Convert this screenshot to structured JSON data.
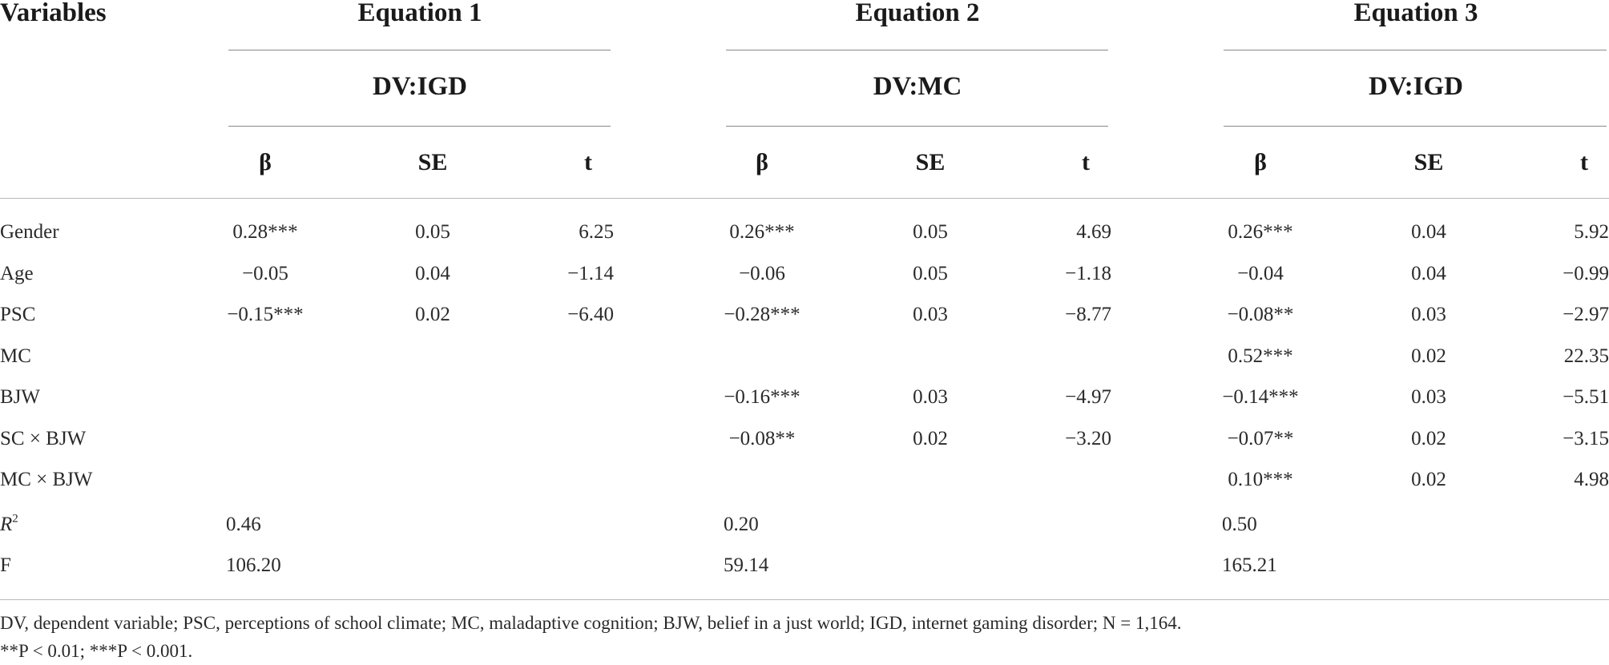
{
  "table": {
    "var_header": "Variables",
    "equations": [
      {
        "title": "Equation 1",
        "dv": "DV:IGD"
      },
      {
        "title": "Equation 2",
        "dv": "DV:MC"
      },
      {
        "title": "Equation 3",
        "dv": "DV:IGD"
      }
    ],
    "col_headers": [
      "β",
      "SE",
      "t"
    ],
    "rows": [
      {
        "label": "Gender",
        "cells": [
          "0.28***",
          "0.05",
          "6.25",
          "0.26***",
          "0.05",
          "4.69",
          "0.26***",
          "0.04",
          "5.92"
        ]
      },
      {
        "label": "Age",
        "cells": [
          "−0.05",
          "0.04",
          "−1.14",
          "−0.06",
          "0.05",
          "−1.18",
          "−0.04",
          "0.04",
          "−0.99"
        ]
      },
      {
        "label": "PSC",
        "cells": [
          "−0.15***",
          "0.02",
          "−6.40",
          "−0.28***",
          "0.03",
          "−8.77",
          "−0.08**",
          "0.03",
          "−2.97"
        ]
      },
      {
        "label": "MC",
        "cells": [
          "",
          "",
          "",
          "",
          "",
          "",
          "0.52***",
          "0.02",
          "22.35"
        ]
      },
      {
        "label": "BJW",
        "cells": [
          "",
          "",
          "",
          "−0.16***",
          "0.03",
          "−4.97",
          "−0.14***",
          "0.03",
          "−5.51"
        ]
      },
      {
        "label": "SC × BJW",
        "cells": [
          "",
          "",
          "",
          "−0.08**",
          "0.02",
          "−3.20",
          "−0.07**",
          "0.02",
          "−3.15"
        ]
      },
      {
        "label": "MC × BJW",
        "cells": [
          "",
          "",
          "",
          "",
          "",
          "",
          "0.10***",
          "0.02",
          "4.98"
        ]
      }
    ],
    "r2": {
      "label_base": "R",
      "label_sup": "2",
      "values": [
        "0.46",
        "0.20",
        "0.50"
      ]
    },
    "f": {
      "label": "F",
      "values": [
        "106.20",
        "59.14",
        "165.21"
      ]
    }
  },
  "footnotes": {
    "line1": "DV, dependent variable; PSC, perceptions of school climate; MC, maladaptive cognition; BJW, belief in a just world; IGD, internet gaming disorder; N = 1,164.",
    "line2": "**P < 0.01; ***P < 0.001."
  }
}
